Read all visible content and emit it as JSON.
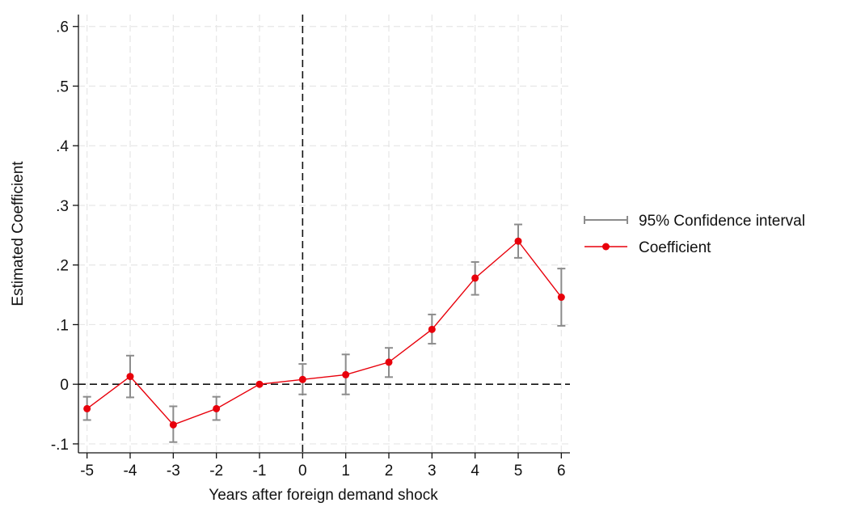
{
  "colors": {
    "coefficient": "#e8000b",
    "ci": "#8c8c8c",
    "grid": "#e6e6e6",
    "axis": "#111111",
    "reference": "#111111"
  },
  "chart_data": {
    "type": "line",
    "title": "",
    "xlabel": "Years after foreign demand shock",
    "ylabel": "Estimated Coefficient",
    "xlim": [
      -5.2,
      6.2
    ],
    "ylim": [
      -0.115,
      0.62
    ],
    "x_ticks": [
      -5,
      -4,
      -3,
      -2,
      -1,
      0,
      1,
      2,
      3,
      4,
      5,
      6
    ],
    "x_tick_labels": [
      "-5",
      "-4",
      "-3",
      "-2",
      "-1",
      "0",
      "1",
      "2",
      "3",
      "4",
      "5",
      "6"
    ],
    "y_ticks": [
      -0.1,
      0,
      0.1,
      0.2,
      0.3,
      0.4,
      0.5,
      0.6
    ],
    "y_tick_labels": [
      "-.1",
      "0",
      ".1",
      ".2",
      ".3",
      ".4",
      ".5",
      ".6"
    ],
    "grid": true,
    "reference_lines": {
      "x": 0,
      "y": 0
    },
    "legend_position": "right",
    "series": [
      {
        "name": "Coefficient",
        "type": "line",
        "x": [
          -5,
          -4,
          -3,
          -2,
          -1,
          0,
          1,
          2,
          3,
          4,
          5,
          6
        ],
        "y": [
          -0.041,
          0.013,
          -0.068,
          -0.041,
          0.0,
          0.008,
          0.016,
          0.037,
          0.092,
          0.178,
          0.24,
          0.146
        ]
      },
      {
        "name": "95% Confidence interval",
        "type": "errorbar",
        "x": [
          -5,
          -4,
          -3,
          -2,
          -1,
          0,
          1,
          2,
          3,
          4,
          5,
          6
        ],
        "lower": [
          -0.06,
          -0.022,
          -0.097,
          -0.06,
          0.0,
          -0.017,
          -0.017,
          0.012,
          0.068,
          0.15,
          0.212,
          0.098
        ],
        "upper": [
          -0.021,
          0.048,
          -0.037,
          -0.021,
          0.0,
          0.034,
          0.05,
          0.061,
          0.117,
          0.205,
          0.268,
          0.194
        ]
      }
    ]
  }
}
